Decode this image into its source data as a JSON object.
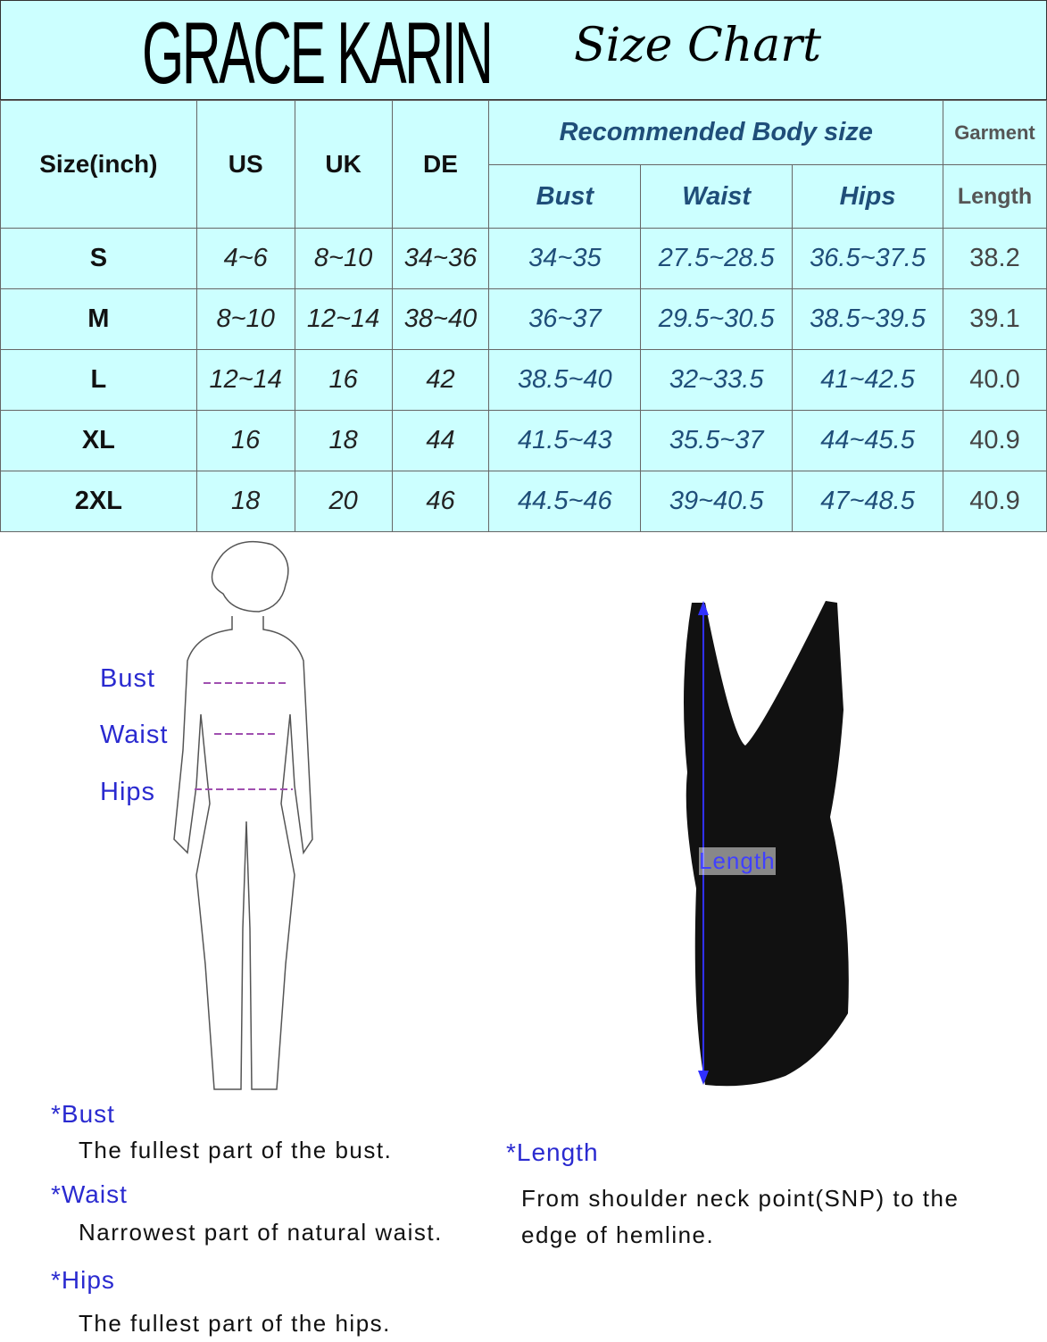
{
  "header": {
    "brand": "GRACE KARIN",
    "title": "Size Chart"
  },
  "table": {
    "headers": {
      "size": "Size(inch)",
      "us": "US",
      "uk": "UK",
      "de": "DE",
      "body": "Recommended Body size",
      "bust": "Bust",
      "waist": "Waist",
      "hips": "Hips",
      "garment": "Garment",
      "length": "Length"
    },
    "rows": [
      [
        "S",
        "4~6",
        "8~10",
        "34~36",
        "34~35",
        "27.5~28.5",
        "36.5~37.5",
        "38.2"
      ],
      [
        "M",
        "8~10",
        "12~14",
        "38~40",
        "36~37",
        "29.5~30.5",
        "38.5~39.5",
        "39.1"
      ],
      [
        "L",
        "12~14",
        "16",
        "42",
        "38.5~40",
        "32~33.5",
        "41~42.5",
        "40.0"
      ],
      [
        "XL",
        "16",
        "18",
        "44",
        "41.5~43",
        "35.5~37",
        "44~45.5",
        "40.9"
      ],
      [
        "2XL",
        "18",
        "20",
        "46",
        "44.5~46",
        "39~40.5",
        "47~48.5",
        "40.9"
      ]
    ]
  },
  "figure": {
    "bust": "Bust",
    "waist": "Waist",
    "hips": "Hips",
    "length": "Length"
  },
  "definitions": {
    "bust_h": "*Bust",
    "bust_t": "The fullest part of the bust.",
    "waist_h": "*Waist",
    "waist_t": "Narrowest part of natural waist.",
    "hips_h": "*Hips",
    "hips_t": "The fullest part of the hips.",
    "length_h": "*Length",
    "length_t1": "From shoulder neck point(SNP) to the",
    "length_t2": "edge of hemline."
  },
  "colors": {
    "table_bg": "#ccffff",
    "body_text": "#1f4e79",
    "label": "#2a2ad0"
  }
}
